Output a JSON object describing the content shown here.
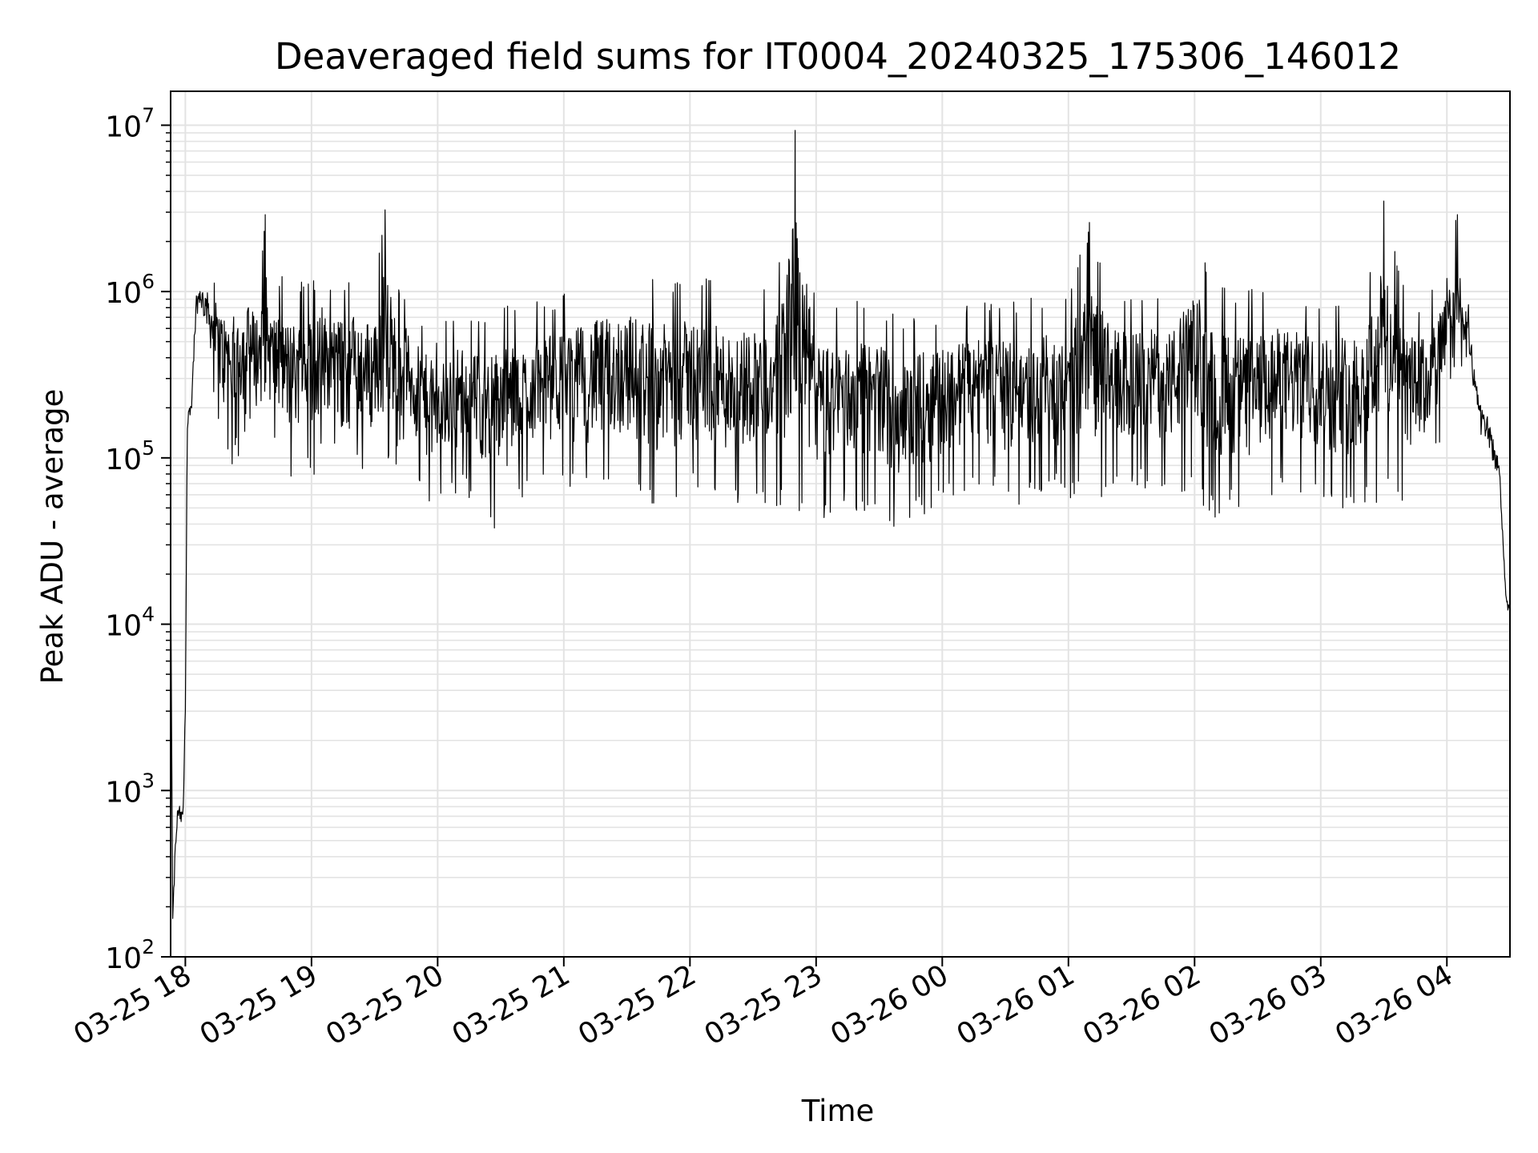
{
  "chart_data": {
    "type": "line",
    "title": "Deaveraged field sums for IT0004_20240325_175306_146012",
    "xlabel": "Time",
    "ylabel": "Peak ADU - average",
    "yscale": "log",
    "ylim": [
      100,
      16000000
    ],
    "xlim": [
      "2024-03-25 17:53",
      "2024-03-26 04:30"
    ],
    "grid": true,
    "line_color": "#000000",
    "x_ticks": [
      "03-25 18",
      "03-25 19",
      "03-25 20",
      "03-25 21",
      "03-25 22",
      "03-25 23",
      "03-26 00",
      "03-26 01",
      "03-26 02",
      "03-26 03",
      "03-26 04"
    ],
    "y_ticks": [
      {
        "base": "10",
        "exp": "2",
        "value": 100
      },
      {
        "base": "10",
        "exp": "3",
        "value": 1000
      },
      {
        "base": "10",
        "exp": "4",
        "value": 10000
      },
      {
        "base": "10",
        "exp": "5",
        "value": 100000
      },
      {
        "base": "10",
        "exp": "6",
        "value": 1000000
      },
      {
        "base": "10",
        "exp": "7",
        "value": 10000000
      }
    ],
    "series": [
      {
        "x": [
          "2024-03-25 17:53",
          "2024-03-25 17:54",
          "2024-03-25 17:55",
          "2024-03-25 17:56",
          "2024-03-25 17:57",
          "2024-03-25 17:58",
          "2024-03-25 17:59",
          "2024-03-25 18:00",
          "2024-03-25 18:01",
          "2024-03-25 18:03",
          "2024-03-25 18:05",
          "2024-03-25 18:07",
          "2024-03-25 18:10",
          "2024-03-25 18:15",
          "2024-03-25 18:20",
          "2024-03-25 18:25",
          "2024-03-25 18:30",
          "2024-03-25 18:35",
          "2024-03-25 18:38",
          "2024-03-25 18:40",
          "2024-03-25 18:45",
          "2024-03-25 18:50",
          "2024-03-25 18:55",
          "2024-03-25 19:00",
          "2024-03-25 19:05",
          "2024-03-25 19:10",
          "2024-03-25 19:15",
          "2024-03-25 19:20",
          "2024-03-25 19:25",
          "2024-03-25 19:30",
          "2024-03-25 19:35",
          "2024-03-25 19:40",
          "2024-03-25 19:45",
          "2024-03-25 19:50",
          "2024-03-25 19:55",
          "2024-03-25 20:00",
          "2024-03-25 20:10",
          "2024-03-25 20:20",
          "2024-03-25 20:30",
          "2024-03-25 20:40",
          "2024-03-25 20:50",
          "2024-03-25 21:00",
          "2024-03-25 21:10",
          "2024-03-25 21:20",
          "2024-03-25 21:30",
          "2024-03-25 21:40",
          "2024-03-25 21:50",
          "2024-03-25 22:00",
          "2024-03-25 22:10",
          "2024-03-25 22:20",
          "2024-03-25 22:30",
          "2024-03-25 22:40",
          "2024-03-25 22:50",
          "2024-03-25 23:00",
          "2024-03-25 23:10",
          "2024-03-25 23:20",
          "2024-03-25 23:30",
          "2024-03-25 23:40",
          "2024-03-25 23:50",
          "2024-03-26 00:00",
          "2024-03-26 00:10",
          "2024-03-26 00:20",
          "2024-03-26 00:30",
          "2024-03-26 00:40",
          "2024-03-26 00:50",
          "2024-03-26 01:00",
          "2024-03-26 01:10",
          "2024-03-26 01:20",
          "2024-03-26 01:30",
          "2024-03-26 01:40",
          "2024-03-26 01:50",
          "2024-03-26 02:00",
          "2024-03-26 02:10",
          "2024-03-26 02:20",
          "2024-03-26 02:30",
          "2024-03-26 02:40",
          "2024-03-26 02:50",
          "2024-03-26 03:00",
          "2024-03-26 03:10",
          "2024-03-26 03:20",
          "2024-03-26 03:30",
          "2024-03-26 03:40",
          "2024-03-26 03:50",
          "2024-03-26 04:00",
          "2024-03-26 04:05",
          "2024-03-26 04:10",
          "2024-03-26 04:15",
          "2024-03-26 04:20",
          "2024-03-26 04:25",
          "2024-03-26 04:28",
          "2024-03-26 04:30"
        ],
        "y": [
          24000,
          170,
          400,
          600,
          750,
          650,
          800,
          3000,
          150000,
          200000,
          800000,
          1000000,
          900000,
          700000,
          500000,
          600000,
          800000,
          500000,
          2900000,
          500000,
          700000,
          600000,
          400000,
          500000,
          800000,
          400000,
          500000,
          700000,
          300000,
          600000,
          3100000,
          500000,
          600000,
          300000,
          250000,
          200000,
          300000,
          250000,
          350000,
          200000,
          300000,
          500000,
          400000,
          350000,
          600000,
          300000,
          500000,
          400000,
          350000,
          400000,
          300000,
          350000,
          9300000,
          250000,
          300000,
          350000,
          300000,
          250000,
          200000,
          250000,
          300000,
          300000,
          350000,
          300000,
          400000,
          350000,
          2600000,
          350000,
          400000,
          300000,
          350000,
          400000,
          300000,
          350000,
          300000,
          400000,
          350000,
          300000,
          350000,
          300000,
          3500000,
          300000,
          400000,
          1200000,
          2900000,
          700000,
          200000,
          150000,
          80000,
          15000,
          12000
        ],
        "min": [
          24000,
          170,
          230,
          550,
          600,
          550,
          600,
          2000,
          140000,
          180000,
          600000,
          700000,
          500000,
          150000,
          80000,
          100000,
          150000,
          100000,
          100000,
          120000,
          80000,
          60000,
          80000,
          70000,
          100000,
          100000,
          60000,
          80000,
          70000,
          60000,
          80000,
          90000,
          100000,
          60000,
          50000,
          45000,
          60000,
          50000,
          32000,
          55000,
          70000,
          60000,
          55000,
          55000,
          60000,
          50000,
          45000,
          60000,
          50000,
          45000,
          55000,
          50000,
          40000,
          38000,
          50000,
          45000,
          55000,
          28000,
          45000,
          50000,
          55000,
          60000,
          55000,
          50000,
          60000,
          55000,
          50000,
          55000,
          60000,
          65000,
          55000,
          60000,
          40000,
          50000,
          38000,
          55000,
          60000,
          55000,
          48000,
          50000,
          55000,
          52000,
          60000,
          150000,
          150000,
          300000,
          150000,
          100000,
          60000,
          14000,
          11000
        ],
        "max": [
          24000,
          170,
          500,
          800,
          900,
          800,
          900,
          4000,
          220000,
          250000,
          1100000,
          1200000,
          1200000,
          1300000,
          1200000,
          1200000,
          1250000,
          1200000,
          2900000,
          1200000,
          1250000,
          1200000,
          1250000,
          1300000,
          1200000,
          1250000,
          1200000,
          1250000,
          1200000,
          1250000,
          3100000,
          1200000,
          900000,
          800000,
          700000,
          600000,
          800000,
          700000,
          900000,
          800000,
          900000,
          1000000,
          1200000,
          1300000,
          1400000,
          1300000,
          1200000,
          1250000,
          1200000,
          1100000,
          1150000,
          1000000,
          9300000,
          900000,
          800000,
          900000,
          850000,
          700000,
          750000,
          800000,
          900000,
          1000000,
          850000,
          900000,
          950000,
          1000000,
          2600000,
          1100000,
          1000000,
          1050000,
          1100000,
          2100000,
          1100000,
          1000000,
          1050000,
          1100000,
          1000000,
          950000,
          1000000,
          1050000,
          3500000,
          1000000,
          900000,
          1500000,
          3000000,
          900000,
          250000,
          200000,
          100000,
          16000,
          12500
        ]
      }
    ]
  }
}
